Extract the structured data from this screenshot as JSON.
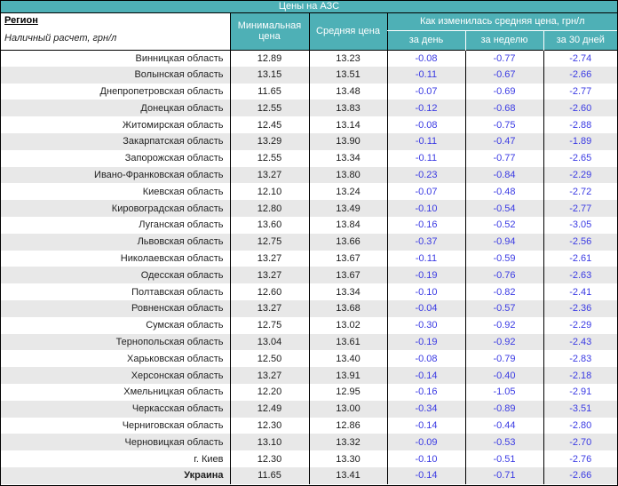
{
  "title": "Цены на АЗС",
  "colors": {
    "teal": "#4EB0B6",
    "stripe": "#E8E8E8",
    "change_text": "#3A3AE3",
    "border": "#000000"
  },
  "table": {
    "region_header": "Регион",
    "region_subheader": "Наличный расчет, грн/л",
    "columns": {
      "min": "Минимальная цена",
      "avg": "Средняя цена",
      "group": "Как изменилась средняя цена, грн/л",
      "day": "за день",
      "week": "за неделю",
      "month": "за 30 дней"
    },
    "rows": [
      {
        "region": "Винницкая область",
        "min": "12.89",
        "avg": "13.23",
        "day": "-0.08",
        "week": "-0.77",
        "month": "-2.74"
      },
      {
        "region": "Волынская область",
        "min": "13.15",
        "avg": "13.51",
        "day": "-0.11",
        "week": "-0.67",
        "month": "-2.66"
      },
      {
        "region": "Днепропетровская область",
        "min": "11.65",
        "avg": "13.48",
        "day": "-0.07",
        "week": "-0.69",
        "month": "-2.77"
      },
      {
        "region": "Донецкая область",
        "min": "12.55",
        "avg": "13.83",
        "day": "-0.12",
        "week": "-0.68",
        "month": "-2.60"
      },
      {
        "region": "Житомирская область",
        "min": "12.45",
        "avg": "13.14",
        "day": "-0.08",
        "week": "-0.75",
        "month": "-2.88"
      },
      {
        "region": "Закарпатская область",
        "min": "13.29",
        "avg": "13.90",
        "day": "-0.11",
        "week": "-0.47",
        "month": "-1.89"
      },
      {
        "region": "Запорожская область",
        "min": "12.55",
        "avg": "13.34",
        "day": "-0.11",
        "week": "-0.77",
        "month": "-2.65"
      },
      {
        "region": "Ивано-Франковская область",
        "min": "13.27",
        "avg": "13.80",
        "day": "-0.23",
        "week": "-0.84",
        "month": "-2.29"
      },
      {
        "region": "Киевская область",
        "min": "12.10",
        "avg": "13.24",
        "day": "-0.07",
        "week": "-0.48",
        "month": "-2.72"
      },
      {
        "region": "Кировоградская область",
        "min": "12.80",
        "avg": "13.49",
        "day": "-0.10",
        "week": "-0.54",
        "month": "-2.77"
      },
      {
        "region": "Луганская область",
        "min": "13.60",
        "avg": "13.84",
        "day": "-0.16",
        "week": "-0.52",
        "month": "-3.05"
      },
      {
        "region": "Львовская область",
        "min": "12.75",
        "avg": "13.66",
        "day": "-0.37",
        "week": "-0.94",
        "month": "-2.56"
      },
      {
        "region": "Николаевская область",
        "min": "13.27",
        "avg": "13.67",
        "day": "-0.11",
        "week": "-0.59",
        "month": "-2.61"
      },
      {
        "region": "Одесская область",
        "min": "13.27",
        "avg": "13.67",
        "day": "-0.19",
        "week": "-0.76",
        "month": "-2.63"
      },
      {
        "region": "Полтавская область",
        "min": "12.60",
        "avg": "13.34",
        "day": "-0.10",
        "week": "-0.82",
        "month": "-2.41"
      },
      {
        "region": "Ровненская область",
        "min": "13.27",
        "avg": "13.68",
        "day": "-0.04",
        "week": "-0.57",
        "month": "-2.36"
      },
      {
        "region": "Сумская область",
        "min": "12.75",
        "avg": "13.02",
        "day": "-0.30",
        "week": "-0.92",
        "month": "-2.29"
      },
      {
        "region": "Тернопольская область",
        "min": "13.04",
        "avg": "13.61",
        "day": "-0.19",
        "week": "-0.92",
        "month": "-2.43"
      },
      {
        "region": "Харьковская область",
        "min": "12.50",
        "avg": "13.40",
        "day": "-0.08",
        "week": "-0.79",
        "month": "-2.83"
      },
      {
        "region": "Херсонская область",
        "min": "13.27",
        "avg": "13.91",
        "day": "-0.14",
        "week": "-0.40",
        "month": "-2.18"
      },
      {
        "region": "Хмельницкая область",
        "min": "12.20",
        "avg": "12.95",
        "day": "-0.16",
        "week": "-1.05",
        "month": "-2.91"
      },
      {
        "region": "Черкасская область",
        "min": "12.49",
        "avg": "13.00",
        "day": "-0.34",
        "week": "-0.89",
        "month": "-3.51"
      },
      {
        "region": "Черниговская область",
        "min": "12.30",
        "avg": "12.86",
        "day": "-0.14",
        "week": "-0.44",
        "month": "-2.80"
      },
      {
        "region": "Черновицкая область",
        "min": "13.10",
        "avg": "13.32",
        "day": "-0.09",
        "week": "-0.53",
        "month": "-2.70"
      },
      {
        "region": "г. Киев",
        "min": "12.30",
        "avg": "13.30",
        "day": "-0.10",
        "week": "-0.51",
        "month": "-2.76"
      }
    ],
    "total_row": {
      "region": "Украина",
      "min": "11.65",
      "avg": "13.41",
      "day": "-0.14",
      "week": "-0.71",
      "month": "-2.66"
    }
  }
}
